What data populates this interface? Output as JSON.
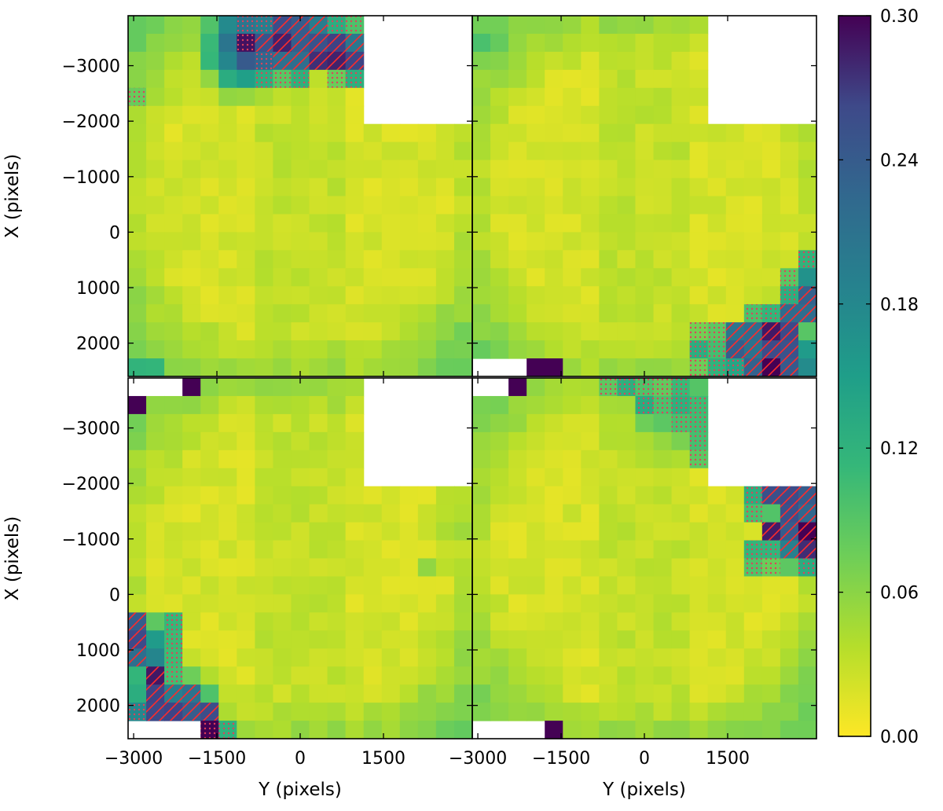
{
  "chart_data": {
    "type": "heatmap",
    "colormap": "viridis_r",
    "colorbar": {
      "min": 0.0,
      "max": 0.3,
      "ticks": [
        "0.00",
        "0.06",
        "0.12",
        "0.18",
        "0.24",
        "0.30"
      ],
      "tick_values": [
        0.0,
        0.06,
        0.12,
        0.18,
        0.24,
        0.3
      ]
    },
    "grid": {
      "rows": 20,
      "cols": 19
    },
    "x_range": [
      -3100,
      3100
    ],
    "y_range": [
      2600,
      -3900
    ],
    "x_ticks": {
      "values": [
        -3000,
        -1500,
        0,
        1500
      ],
      "labels": [
        "−3000",
        "−1500",
        "0",
        "1500"
      ]
    },
    "y_ticks": {
      "values": [
        -3000,
        -2000,
        -1000,
        0,
        1000,
        2000
      ],
      "labels": [
        "−3000",
        "−2000",
        "−1000",
        "0",
        "1000",
        "2000"
      ]
    },
    "xlabel": "Y (pixels)",
    "ylabel": "X (pixels)",
    "colors": {
      "hatch": "#ff2a2a",
      "dots": "#e0405a",
      "background": "#ffffff"
    },
    "panels": [
      {
        "position": "top-left",
        "show_ylabel": true,
        "show_xlabel": false,
        "masked_rect": {
          "x0": 1200,
          "x1": 3100,
          "y0": -3900,
          "y1": -2000
        },
        "hotspots": [
          {
            "cx": 6.2,
            "cy": 1.2,
            "r": 3.4,
            "peak": 0.3
          },
          {
            "cx": 0.3,
            "cy": 19.4,
            "r": 2.6,
            "peak": 0.13
          },
          {
            "cx": 0.0,
            "cy": 4.2,
            "r": 1.0,
            "peak": 0.08
          }
        ],
        "hatched_cells": [
          [
            0,
            8
          ],
          [
            0,
            9
          ],
          [
            0,
            10
          ],
          [
            1,
            7
          ],
          [
            1,
            8
          ],
          [
            1,
            9
          ],
          [
            1,
            10
          ],
          [
            1,
            11
          ],
          [
            1,
            12
          ],
          [
            2,
            8
          ],
          [
            2,
            9
          ],
          [
            2,
            10
          ],
          [
            2,
            11
          ],
          [
            2,
            12
          ]
        ],
        "dotted_cells": [
          [
            0,
            6
          ],
          [
            0,
            7
          ],
          [
            0,
            11
          ],
          [
            0,
            12
          ],
          [
            1,
            6
          ],
          [
            2,
            7
          ],
          [
            3,
            7
          ],
          [
            3,
            8
          ],
          [
            3,
            9
          ],
          [
            3,
            11
          ],
          [
            3,
            12
          ],
          [
            4,
            0
          ]
        ],
        "masked_cells": []
      },
      {
        "position": "top-right",
        "show_ylabel": false,
        "show_xlabel": false,
        "masked_rect": {
          "x0": 1200,
          "x1": 3100,
          "y0": -3900,
          "y1": -2000
        },
        "hotspots": [
          {
            "cx": 16.2,
            "cy": 18.8,
            "r": 3.6,
            "peak": 0.3
          },
          {
            "cx": 18.6,
            "cy": 14.4,
            "r": 2.2,
            "peak": 0.24
          },
          {
            "cx": 0.4,
            "cy": 0.8,
            "r": 2.0,
            "peak": 0.1
          },
          {
            "cx": 0.4,
            "cy": 19.2,
            "r": 1.6,
            "peak": 0.08
          }
        ],
        "hatched_cells": [
          [
            15,
            18
          ],
          [
            16,
            17
          ],
          [
            16,
            18
          ],
          [
            17,
            14
          ],
          [
            17,
            15
          ],
          [
            17,
            16
          ],
          [
            17,
            17
          ],
          [
            18,
            14
          ],
          [
            18,
            15
          ],
          [
            18,
            16
          ],
          [
            18,
            17
          ],
          [
            19,
            15
          ],
          [
            19,
            16
          ],
          [
            19,
            17
          ]
        ],
        "dotted_cells": [
          [
            13,
            18
          ],
          [
            14,
            17
          ],
          [
            15,
            17
          ],
          [
            16,
            15
          ],
          [
            16,
            16
          ],
          [
            17,
            12
          ],
          [
            17,
            13
          ],
          [
            18,
            12
          ],
          [
            18,
            13
          ],
          [
            19,
            12
          ],
          [
            19,
            13
          ],
          [
            19,
            14
          ]
        ],
        "masked_cells": [
          [
            19,
            0
          ],
          [
            19,
            1
          ],
          [
            19,
            2
          ]
        ],
        "extreme_cells": [
          [
            19,
            3
          ],
          [
            19,
            4
          ],
          [
            19,
            16
          ]
        ]
      },
      {
        "position": "bottom-left",
        "show_ylabel": true,
        "show_xlabel": true,
        "masked_rect": {
          "x0": 1200,
          "x1": 3100,
          "y0": -3900,
          "y1": -2000
        },
        "hotspots": [
          {
            "cx": 1.6,
            "cy": 18.6,
            "r": 3.8,
            "peak": 0.3
          },
          {
            "cx": 0.3,
            "cy": 14.8,
            "r": 2.6,
            "peak": 0.22
          },
          {
            "cx": 16.3,
            "cy": 10.1,
            "r": 0.9,
            "peak": 0.06
          },
          {
            "cx": 18.2,
            "cy": 7.6,
            "r": 1.8,
            "peak": 0.05
          }
        ],
        "hatched_cells": [
          [
            13,
            0
          ],
          [
            14,
            0
          ],
          [
            15,
            0
          ],
          [
            16,
            1
          ],
          [
            17,
            1
          ],
          [
            17,
            2
          ],
          [
            17,
            3
          ],
          [
            18,
            1
          ],
          [
            18,
            2
          ],
          [
            18,
            3
          ],
          [
            18,
            4
          ]
        ],
        "dotted_cells": [
          [
            13,
            2
          ],
          [
            14,
            2
          ],
          [
            15,
            2
          ],
          [
            16,
            2
          ],
          [
            18,
            0
          ],
          [
            19,
            4
          ],
          [
            19,
            5
          ]
        ],
        "masked_cells": [
          [
            0,
            0
          ],
          [
            0,
            1
          ],
          [
            0,
            2
          ],
          [
            19,
            0
          ],
          [
            19,
            1
          ],
          [
            19,
            2
          ],
          [
            19,
            3
          ]
        ],
        "extreme_cells": [
          [
            0,
            3
          ],
          [
            1,
            0
          ],
          [
            19,
            4
          ]
        ]
      },
      {
        "position": "bottom-right",
        "show_ylabel": false,
        "show_xlabel": true,
        "masked_rect": {
          "x0": 1200,
          "x1": 3100,
          "y0": -3900,
          "y1": -2000
        },
        "hotspots": [
          {
            "cx": 17.8,
            "cy": 8.0,
            "r": 2.8,
            "peak": 0.3
          },
          {
            "cx": 11.0,
            "cy": 1.0,
            "r": 3.6,
            "peak": 0.12
          },
          {
            "cx": 0.4,
            "cy": 19.2,
            "r": 1.8,
            "peak": 0.1
          }
        ],
        "hatched_cells": [
          [
            6,
            16
          ],
          [
            6,
            17
          ],
          [
            6,
            18
          ],
          [
            7,
            17
          ],
          [
            7,
            18
          ],
          [
            8,
            16
          ],
          [
            8,
            17
          ],
          [
            8,
            18
          ],
          [
            9,
            17
          ],
          [
            9,
            18
          ]
        ],
        "dotted_cells": [
          [
            0,
            7
          ],
          [
            0,
            8
          ],
          [
            0,
            9
          ],
          [
            0,
            10
          ],
          [
            0,
            11
          ],
          [
            1,
            9
          ],
          [
            1,
            10
          ],
          [
            1,
            11
          ],
          [
            1,
            12
          ],
          [
            2,
            11
          ],
          [
            2,
            12
          ],
          [
            2,
            13
          ],
          [
            3,
            12
          ],
          [
            3,
            13
          ],
          [
            4,
            12
          ],
          [
            6,
            15
          ],
          [
            7,
            15
          ],
          [
            9,
            15
          ],
          [
            9,
            16
          ],
          [
            10,
            15
          ],
          [
            10,
            16
          ],
          [
            10,
            18
          ]
        ],
        "masked_cells": [
          [
            0,
            0
          ],
          [
            0,
            1
          ],
          [
            19,
            0
          ],
          [
            19,
            1
          ],
          [
            19,
            2
          ],
          [
            19,
            3
          ]
        ],
        "extreme_cells": [
          [
            0,
            2
          ],
          [
            8,
            18
          ],
          [
            19,
            4
          ]
        ]
      }
    ]
  }
}
